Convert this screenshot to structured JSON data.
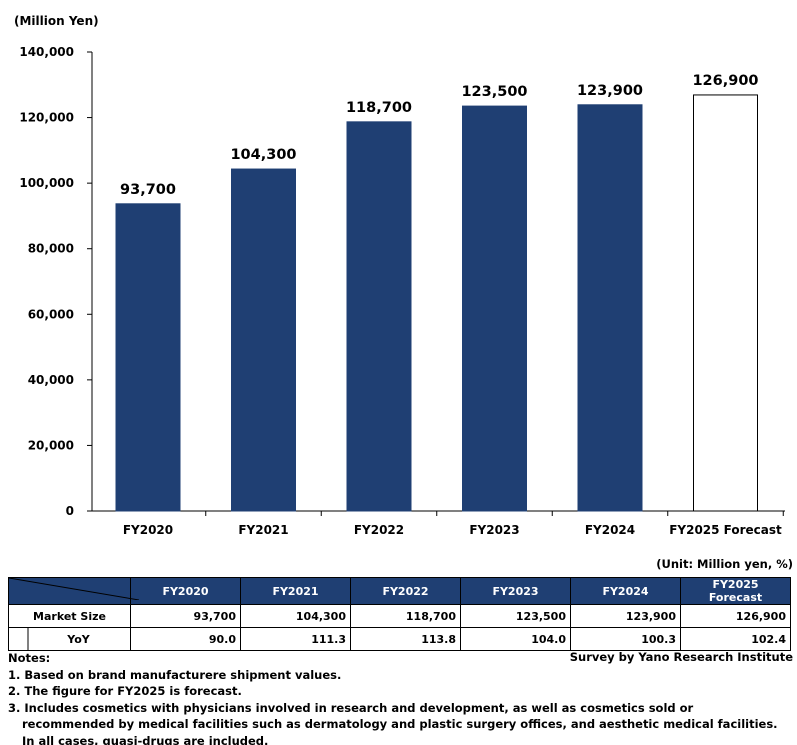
{
  "chart_data": {
    "type": "bar",
    "yunit": "(Million Yen)",
    "categories": [
      "FY2020",
      "FY2021",
      "FY2022",
      "FY2023",
      "FY2024",
      "FY2025 Forecast"
    ],
    "values": [
      93700,
      104300,
      118700,
      123500,
      123900,
      126900
    ],
    "data_labels": [
      "93,700",
      "104,300",
      "118,700",
      "123,500",
      "123,900",
      "126,900"
    ],
    "forecast_index": 5,
    "ylim": [
      0,
      140000
    ],
    "yticks": [
      0,
      20000,
      40000,
      60000,
      80000,
      100000,
      120000,
      140000
    ],
    "ytick_labels": [
      "0",
      "20,000",
      "40,000",
      "60,000",
      "80,000",
      "100,000",
      "120,000",
      "140,000"
    ],
    "grid": false,
    "colors": {
      "bar": "#1f3f73",
      "forecast_bar": "#ffffff"
    }
  },
  "table": {
    "unit": "(Unit: Million yen, %)",
    "headers": [
      "FY2020",
      "FY2021",
      "FY2022",
      "FY2023",
      "FY2024",
      "FY2025 Forecast"
    ],
    "rows": [
      {
        "label": "Market Size",
        "values": [
          "93,700",
          "104,300",
          "118,700",
          "123,500",
          "123,900",
          "126,900"
        ]
      },
      {
        "label": "YoY",
        "values": [
          "90.0",
          "111.3",
          "113.8",
          "104.0",
          "100.3",
          "102.4"
        ]
      }
    ]
  },
  "notes": {
    "title": "Notes:",
    "source": "Survey by Yano Research Institute",
    "items": [
      "1. Based on brand manufacturere shipment values.",
      "2. The figure for FY2025 is forecast.",
      "3. Includes cosmetics with physicians involved in research and development, as well as cosmetics sold or",
      "recommended by medical facilities such as dermatology and plastic surgery offices, and aesthetic medical facilities.",
      "In all cases, quasi-drugs are included."
    ]
  }
}
